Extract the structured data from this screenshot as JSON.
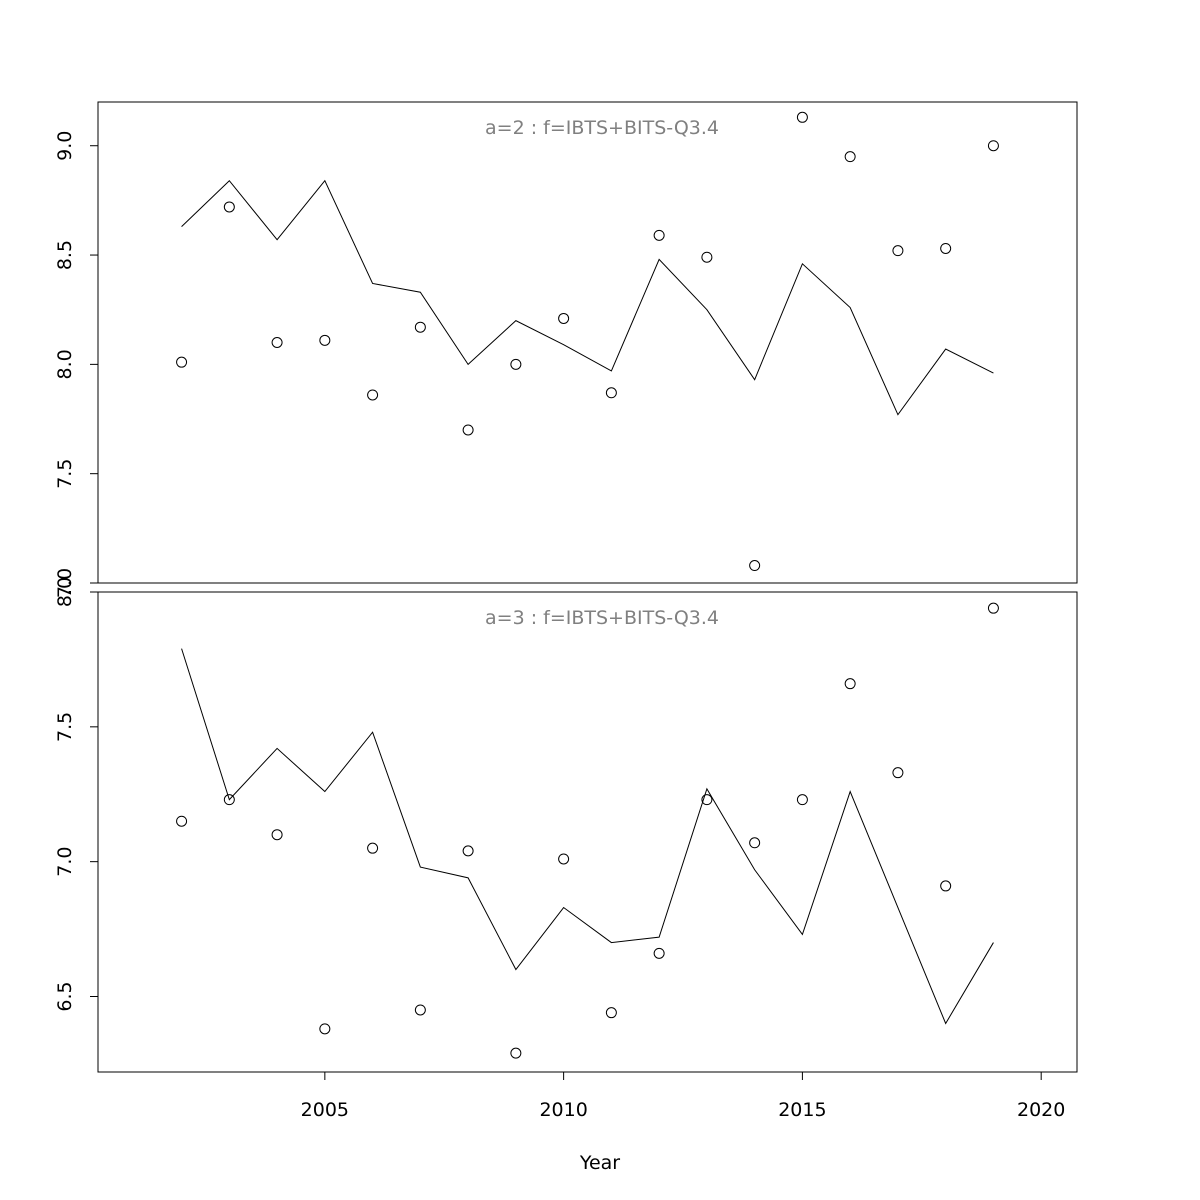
{
  "chart_data": {
    "type": "line",
    "xlabel": "Year",
    "x_ticks": [
      2005,
      2010,
      2015,
      2020
    ],
    "xlim": [
      2000.25,
      2020.75
    ],
    "panels": [
      {
        "title": "a=2  :  f=IBTS+BITS-Q3.4",
        "ylim": [
          7.0,
          9.2
        ],
        "y_ticks": [
          7.0,
          7.5,
          8.0,
          8.5,
          9.0
        ],
        "y_tick_labels": [
          "7.0",
          "7.5",
          "8.0",
          "8.5",
          "9.0"
        ],
        "x": [
          2002,
          2003,
          2004,
          2005,
          2006,
          2007,
          2008,
          2009,
          2010,
          2011,
          2012,
          2013,
          2014,
          2015,
          2016,
          2017,
          2018,
          2019
        ],
        "series": [
          {
            "style": "points",
            "values": [
              8.01,
              8.72,
              8.1,
              8.11,
              7.86,
              8.17,
              7.7,
              8.0,
              8.21,
              7.87,
              8.59,
              8.49,
              7.08,
              9.13,
              8.95,
              8.52,
              8.53,
              9.0
            ]
          },
          {
            "style": "line",
            "values": [
              8.63,
              8.84,
              8.57,
              8.84,
              8.37,
              8.33,
              8.0,
              8.2,
              8.09,
              7.97,
              8.48,
              8.25,
              7.93,
              8.46,
              8.26,
              7.77,
              8.07,
              7.96
            ]
          }
        ]
      },
      {
        "title": "a=3  :  f=IBTS+BITS-Q3.4",
        "ylim": [
          6.22,
          8.0
        ],
        "y_ticks": [
          6.5,
          7.0,
          7.5,
          8.0
        ],
        "y_tick_labels": [
          "6.5",
          "7.0",
          "7.5",
          "8.0"
        ],
        "x": [
          2002,
          2003,
          2004,
          2005,
          2006,
          2007,
          2008,
          2009,
          2010,
          2011,
          2012,
          2013,
          2014,
          2015,
          2016,
          2017,
          2018,
          2019
        ],
        "series": [
          {
            "style": "points",
            "values": [
              7.15,
              7.23,
              7.1,
              6.38,
              7.05,
              6.45,
              7.04,
              6.29,
              7.01,
              6.44,
              6.66,
              7.23,
              7.07,
              7.23,
              7.66,
              7.33,
              6.91,
              7.94
            ]
          },
          {
            "style": "line",
            "values": [
              7.79,
              7.23,
              7.42,
              7.26,
              7.48,
              6.98,
              6.94,
              6.6,
              6.83,
              6.7,
              6.72,
              7.27,
              6.97,
              6.73,
              7.26,
              6.83,
              6.4,
              6.7
            ]
          }
        ]
      }
    ]
  }
}
